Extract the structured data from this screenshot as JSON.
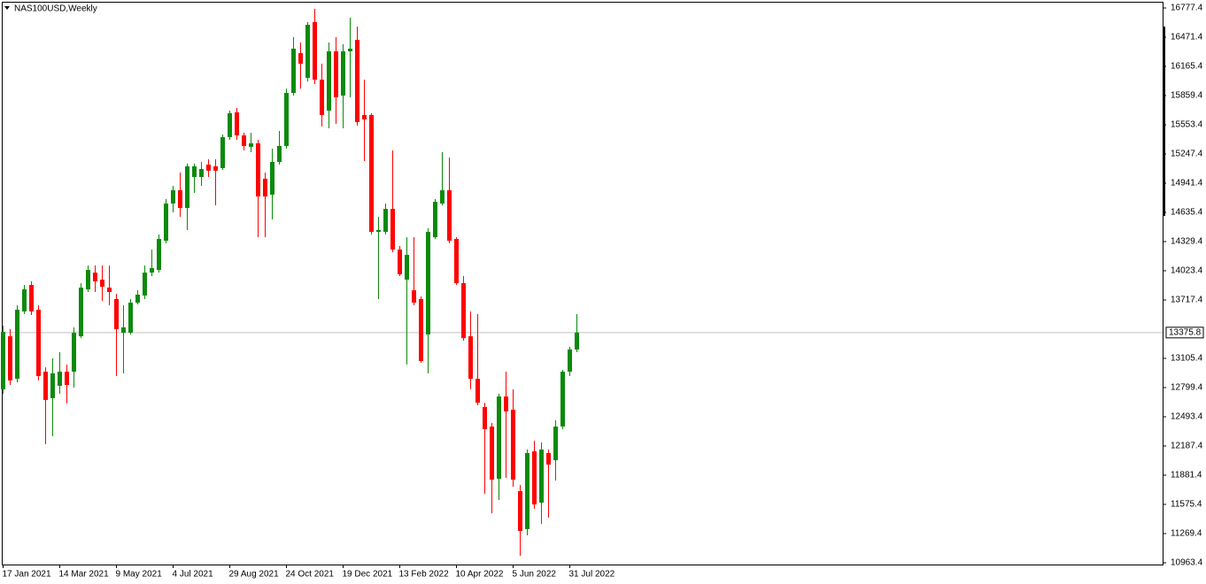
{
  "chart_data": {
    "type": "candlestick",
    "title": "NAS100USD,Weekly",
    "categories": [
      "17 Jan 2021",
      null,
      null,
      null,
      null,
      null,
      null,
      null,
      "14 Mar 2021",
      null,
      null,
      null,
      null,
      null,
      null,
      null,
      "9 May 2021",
      null,
      null,
      null,
      null,
      null,
      null,
      null,
      "4 Jul 2021",
      null,
      null,
      null,
      null,
      null,
      null,
      null,
      "29 Aug 2021",
      null,
      null,
      null,
      null,
      null,
      null,
      null,
      "24 Oct 2021",
      null,
      null,
      null,
      null,
      null,
      null,
      null,
      "19 Dec 2021",
      null,
      null,
      null,
      null,
      null,
      null,
      null,
      "13 Feb 2022",
      null,
      null,
      null,
      null,
      null,
      null,
      null,
      "10 Apr 2022",
      null,
      null,
      null,
      null,
      null,
      null,
      null,
      "5 Jun 2022",
      null,
      null,
      null,
      null,
      null,
      null,
      null,
      "31 Jul 2022",
      null
    ],
    "open": [
      12781,
      13337,
      12892,
      13597,
      13875,
      13615,
      12966,
      12688,
      12818,
      12966,
      12966,
      13337,
      13829,
      14004,
      13930,
      13847,
      13727,
      13374,
      13374,
      13689,
      13764,
      14004,
      14032,
      14338,
      14728,
      14867,
      14681,
      15006,
      15006,
      15136,
      15118,
      15099,
      15424,
      15684,
      15442,
      15322,
      15359,
      14988,
      14821,
      15164,
      15331,
      15887,
      16304,
      16045,
      16629,
      16026,
      15702,
      16323,
      15859,
      16323,
      16443,
      15656,
      15656,
      14431,
      14431,
      14672,
      14246,
      13930,
      13819,
      13727,
      13356,
      14375,
      14728,
      14867,
      14357,
      13893,
      13337,
      12892,
      12595,
      12391,
      11844,
      12706,
      12567,
      11714,
      11316,
      12131,
      11593,
      12113,
      12038,
      12391,
      12966,
      13198
    ],
    "high": [
      13448,
      13411,
      13662,
      13875,
      13912,
      13662,
      13012,
      13105,
      13170,
      13040,
      13430,
      13893,
      14079,
      14079,
      14079,
      14079,
      13782,
      13662,
      13727,
      13819,
      14079,
      14246,
      14404,
      14774,
      14913,
      15053,
      15146,
      15146,
      15164,
      15192,
      15192,
      15451,
      15702,
      15730,
      15470,
      15470,
      15396,
      15053,
      15303,
      15489,
      15933,
      16471,
      16416,
      16629,
      16768,
      16193,
      16416,
      16471,
      16397,
      16675,
      16583,
      16026,
      15674,
      14589,
      14728,
      15285,
      14283,
      14375,
      14375,
      13754,
      14468,
      14774,
      15266,
      15210,
      14375,
      13968,
      13597,
      13569,
      12641,
      12428,
      12734,
      12966,
      12781,
      11779,
      12150,
      12243,
      12224,
      12150,
      12456,
      12985,
      13226,
      13569
    ],
    "low": [
      12734,
      12827,
      12855,
      13569,
      13560,
      12874,
      12206,
      12289,
      12734,
      12632,
      12799,
      13318,
      13801,
      13801,
      13708,
      13662,
      12920,
      12948,
      13356,
      13671,
      13727,
      13968,
      14004,
      14311,
      14635,
      14589,
      14450,
      14839,
      14913,
      15006,
      14709,
      15080,
      15396,
      15396,
      15285,
      15266,
      14375,
      14375,
      14561,
      15136,
      15303,
      15859,
      15933,
      16008,
      15980,
      15535,
      15516,
      15563,
      15516,
      15841,
      15544,
      15173,
      14404,
      13727,
      14404,
      14218,
      13968,
      13040,
      13662,
      13059,
      12948,
      14357,
      14709,
      14311,
      13875,
      13291,
      12781,
      12614,
      11686,
      11482,
      11621,
      11853,
      11760,
      11037,
      11251,
      11528,
      11371,
      11436,
      11825,
      12363,
      12920,
      13170
    ],
    "close": [
      13384,
      12874,
      13615,
      13829,
      13597,
      12920,
      12670,
      12948,
      12966,
      12827,
      13374,
      13847,
      14032,
      13912,
      13856,
      13801,
      13411,
      13430,
      13689,
      13773,
      14004,
      14051,
      14357,
      14728,
      14867,
      14681,
      15118,
      15118,
      15090,
      15072,
      15072,
      15424,
      15674,
      15442,
      15331,
      15359,
      14802,
      14802,
      15164,
      15331,
      15887,
      16351,
      16193,
      16601,
      16026,
      15656,
      16323,
      15841,
      16323,
      16351,
      15581,
      15609,
      14431,
      14450,
      14672,
      14246,
      13986,
      14190,
      13689,
      13077,
      14431,
      14746,
      14867,
      14338,
      13893,
      13318,
      12892,
      12641,
      12363,
      11834,
      12706,
      12549,
      11834,
      11297,
      12113,
      11575,
      12150,
      11992,
      12391,
      12966,
      13198,
      13375.8
    ],
    "up_color": "#0b8a0b",
    "down_color": "#ff0000",
    "current_price": 13375.8,
    "ylim": [
      10944.9,
      16842.3
    ],
    "yticks": [
      16777.4,
      16471.4,
      16165.4,
      15859.4,
      15553.4,
      15247.4,
      14941.4,
      14635.4,
      14329.4,
      14023.4,
      13717.4,
      13105.4,
      12799.4,
      12493.4,
      12187.4,
      11881.4,
      11575.4,
      11269.4,
      10963.4
    ]
  }
}
